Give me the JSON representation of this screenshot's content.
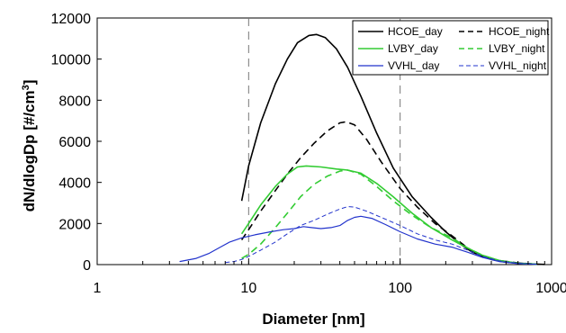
{
  "chart_data": {
    "type": "line",
    "title": "",
    "xlabel": "Diameter  [nm]",
    "ylabel": "dN/dlogDp [#/cm",
    "ylabel_superscript": "3",
    "ylabel_suffix": "]",
    "xscale": "log",
    "xlim": [
      1,
      1000
    ],
    "ylim": [
      0,
      12000
    ],
    "x_ticks": [
      1,
      10,
      100,
      1000
    ],
    "x_tick_labels": [
      "1",
      "10",
      "100",
      "1000"
    ],
    "y_ticks": [
      0,
      2000,
      4000,
      6000,
      8000,
      10000,
      12000
    ],
    "y_tick_labels": [
      "0",
      "2000",
      "4000",
      "6000",
      "8000",
      "10000",
      "12000"
    ],
    "reference_lines_x": [
      10,
      100
    ],
    "grid": false,
    "legend_position": "top-right",
    "series": [
      {
        "name": "HCOE_day",
        "color": "#000000",
        "dash": "solid",
        "width": 1.6,
        "points": [
          [
            9,
            3100
          ],
          [
            10,
            4800
          ],
          [
            12,
            6900
          ],
          [
            15,
            8800
          ],
          [
            18,
            10000
          ],
          [
            21,
            10800
          ],
          [
            25,
            11150
          ],
          [
            28,
            11200
          ],
          [
            32,
            11050
          ],
          [
            38,
            10500
          ],
          [
            45,
            9600
          ],
          [
            55,
            8200
          ],
          [
            70,
            6400
          ],
          [
            90,
            4700
          ],
          [
            120,
            3300
          ],
          [
            160,
            2300
          ],
          [
            200,
            1600
          ],
          [
            250,
            1000
          ],
          [
            300,
            600
          ],
          [
            400,
            250
          ],
          [
            500,
            120
          ],
          [
            700,
            40
          ],
          [
            900,
            10
          ]
        ]
      },
      {
        "name": "HCOE_night",
        "color": "#000000",
        "dash": "dashed",
        "width": 1.6,
        "points": [
          [
            9,
            1200
          ],
          [
            10,
            1700
          ],
          [
            12,
            2600
          ],
          [
            15,
            3600
          ],
          [
            18,
            4400
          ],
          [
            22,
            5200
          ],
          [
            27,
            5900
          ],
          [
            33,
            6500
          ],
          [
            40,
            6900
          ],
          [
            44,
            6950
          ],
          [
            50,
            6800
          ],
          [
            60,
            6100
          ],
          [
            75,
            5000
          ],
          [
            100,
            3700
          ],
          [
            130,
            2800
          ],
          [
            170,
            2000
          ],
          [
            220,
            1400
          ],
          [
            280,
            800
          ],
          [
            350,
            400
          ],
          [
            450,
            200
          ],
          [
            600,
            80
          ],
          [
            800,
            20
          ]
        ]
      },
      {
        "name": "LVBY_day",
        "color": "#33cc33",
        "dash": "solid",
        "width": 1.6,
        "points": [
          [
            9,
            1500
          ],
          [
            10,
            2000
          ],
          [
            12,
            2900
          ],
          [
            15,
            3800
          ],
          [
            18,
            4400
          ],
          [
            21,
            4750
          ],
          [
            24,
            4800
          ],
          [
            30,
            4750
          ],
          [
            38,
            4650
          ],
          [
            45,
            4600
          ],
          [
            55,
            4450
          ],
          [
            70,
            3950
          ],
          [
            90,
            3300
          ],
          [
            120,
            2500
          ],
          [
            160,
            1800
          ],
          [
            220,
            1200
          ],
          [
            280,
            800
          ],
          [
            350,
            450
          ],
          [
            450,
            200
          ],
          [
            600,
            60
          ],
          [
            800,
            20
          ]
        ]
      },
      {
        "name": "LVBY_night",
        "color": "#33cc33",
        "dash": "dashed",
        "width": 1.6,
        "points": [
          [
            9,
            300
          ],
          [
            10,
            500
          ],
          [
            12,
            1000
          ],
          [
            15,
            1800
          ],
          [
            18,
            2500
          ],
          [
            22,
            3300
          ],
          [
            27,
            3900
          ],
          [
            33,
            4300
          ],
          [
            40,
            4550
          ],
          [
            45,
            4600
          ],
          [
            55,
            4400
          ],
          [
            70,
            3800
          ],
          [
            90,
            3100
          ],
          [
            120,
            2400
          ],
          [
            160,
            1800
          ],
          [
            220,
            1300
          ],
          [
            280,
            800
          ],
          [
            350,
            450
          ],
          [
            450,
            200
          ],
          [
            600,
            60
          ],
          [
            800,
            20
          ]
        ]
      },
      {
        "name": "VVHL_day",
        "color": "#2233cc",
        "dash": "solid",
        "width": 1.2,
        "points": [
          [
            3.5,
            150
          ],
          [
            4.5,
            300
          ],
          [
            5.5,
            550
          ],
          [
            6.5,
            850
          ],
          [
            7.5,
            1100
          ],
          [
            9,
            1300
          ],
          [
            11,
            1450
          ],
          [
            14,
            1600
          ],
          [
            17,
            1700
          ],
          [
            20,
            1750
          ],
          [
            23,
            1850
          ],
          [
            26,
            1800
          ],
          [
            30,
            1750
          ],
          [
            35,
            1800
          ],
          [
            40,
            1900
          ],
          [
            45,
            2150
          ],
          [
            50,
            2300
          ],
          [
            55,
            2350
          ],
          [
            65,
            2250
          ],
          [
            80,
            1950
          ],
          [
            100,
            1600
          ],
          [
            130,
            1250
          ],
          [
            170,
            1000
          ],
          [
            220,
            850
          ],
          [
            280,
            600
          ],
          [
            350,
            350
          ],
          [
            450,
            150
          ],
          [
            600,
            50
          ],
          [
            800,
            15
          ]
        ]
      },
      {
        "name": "VVHL_night",
        "color": "#2233cc",
        "dash": "dashed",
        "width": 1.0,
        "points": [
          [
            7,
            100
          ],
          [
            8,
            150
          ],
          [
            9,
            250
          ],
          [
            10,
            400
          ],
          [
            12,
            700
          ],
          [
            15,
            1100
          ],
          [
            18,
            1500
          ],
          [
            22,
            1900
          ],
          [
            27,
            2150
          ],
          [
            33,
            2450
          ],
          [
            40,
            2700
          ],
          [
            45,
            2820
          ],
          [
            50,
            2800
          ],
          [
            60,
            2600
          ],
          [
            75,
            2300
          ],
          [
            100,
            1900
          ],
          [
            130,
            1500
          ],
          [
            170,
            1200
          ],
          [
            220,
            1000
          ],
          [
            280,
            700
          ],
          [
            350,
            400
          ],
          [
            450,
            180
          ],
          [
            600,
            60
          ],
          [
            800,
            20
          ]
        ]
      }
    ]
  }
}
